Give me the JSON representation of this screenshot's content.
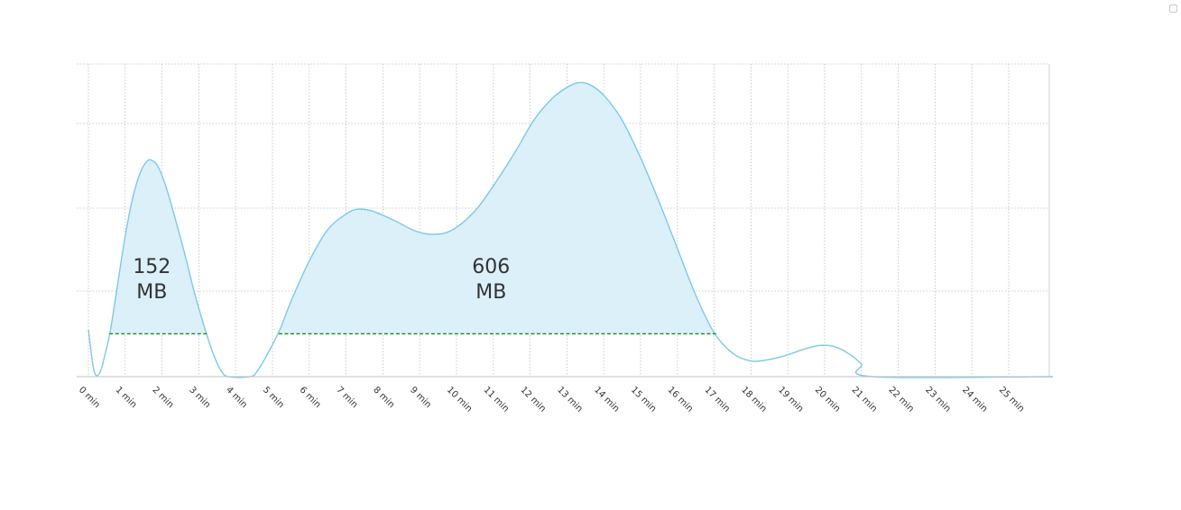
{
  "chart_data": {
    "type": "area",
    "title": "",
    "xlabel": "",
    "ylabel": "",
    "x_unit": "min",
    "xlim": [
      0,
      26.5
    ],
    "ylim": [
      0,
      1
    ],
    "grid": true,
    "series": [
      {
        "color": "#7cc9ea",
        "fill": "#dcf0fa",
        "points": [
          [
            0.0,
            0.15
          ],
          [
            0.15,
            0.02
          ],
          [
            0.3,
            0.01
          ],
          [
            0.45,
            0.07
          ],
          [
            0.6,
            0.15
          ],
          [
            0.8,
            0.3
          ],
          [
            1.0,
            0.45
          ],
          [
            1.2,
            0.57
          ],
          [
            1.4,
            0.65
          ],
          [
            1.6,
            0.69
          ],
          [
            1.75,
            0.69
          ],
          [
            1.9,
            0.67
          ],
          [
            2.1,
            0.61
          ],
          [
            2.3,
            0.53
          ],
          [
            2.6,
            0.4
          ],
          [
            2.9,
            0.26
          ],
          [
            3.2,
            0.14
          ],
          [
            3.4,
            0.07
          ],
          [
            3.6,
            0.02
          ],
          [
            3.8,
            0.0
          ],
          [
            4.4,
            0.0
          ],
          [
            4.6,
            0.02
          ],
          [
            4.9,
            0.08
          ],
          [
            5.2,
            0.15
          ],
          [
            5.5,
            0.24
          ],
          [
            6.0,
            0.37
          ],
          [
            6.5,
            0.47
          ],
          [
            7.0,
            0.52
          ],
          [
            7.3,
            0.535
          ],
          [
            7.7,
            0.53
          ],
          [
            8.3,
            0.5
          ],
          [
            8.9,
            0.465
          ],
          [
            9.4,
            0.455
          ],
          [
            9.9,
            0.47
          ],
          [
            10.5,
            0.53
          ],
          [
            11.0,
            0.61
          ],
          [
            11.6,
            0.72
          ],
          [
            12.1,
            0.82
          ],
          [
            12.6,
            0.89
          ],
          [
            13.0,
            0.925
          ],
          [
            13.3,
            0.94
          ],
          [
            13.6,
            0.935
          ],
          [
            14.0,
            0.9
          ],
          [
            14.5,
            0.82
          ],
          [
            15.0,
            0.7
          ],
          [
            15.5,
            0.56
          ],
          [
            16.0,
            0.41
          ],
          [
            16.5,
            0.26
          ],
          [
            17.0,
            0.14
          ],
          [
            17.5,
            0.075
          ],
          [
            18.0,
            0.05
          ],
          [
            18.5,
            0.055
          ],
          [
            19.0,
            0.07
          ],
          [
            19.5,
            0.09
          ],
          [
            19.9,
            0.1
          ],
          [
            20.3,
            0.095
          ],
          [
            20.7,
            0.07
          ],
          [
            21.0,
            0.04
          ],
          [
            21.3,
            0.0
          ],
          [
            26.2,
            0.0
          ]
        ]
      }
    ],
    "threshold": {
      "value": 0.137,
      "color": "#1a8a1a"
    },
    "highlighted_regions": [
      {
        "start": 0.57,
        "end": 3.22,
        "label_value": "152",
        "label_unit": "MB"
      },
      {
        "start": 5.17,
        "end": 17.05,
        "label_value": "606",
        "label_unit": "MB"
      }
    ],
    "x_tick_labels": [
      "0 min",
      "1 min",
      "2 min",
      "3 min",
      "4 min",
      "5 min",
      "6 min",
      "7 min",
      "8 min",
      "9 min",
      "10 min",
      "11 min",
      "12 min",
      "13 min",
      "14 min",
      "15 min",
      "16 min",
      "17 min",
      "18 min",
      "19 min",
      "20 min",
      "21 min",
      "22 min",
      "23 min",
      "24 min",
      "25 min"
    ]
  }
}
